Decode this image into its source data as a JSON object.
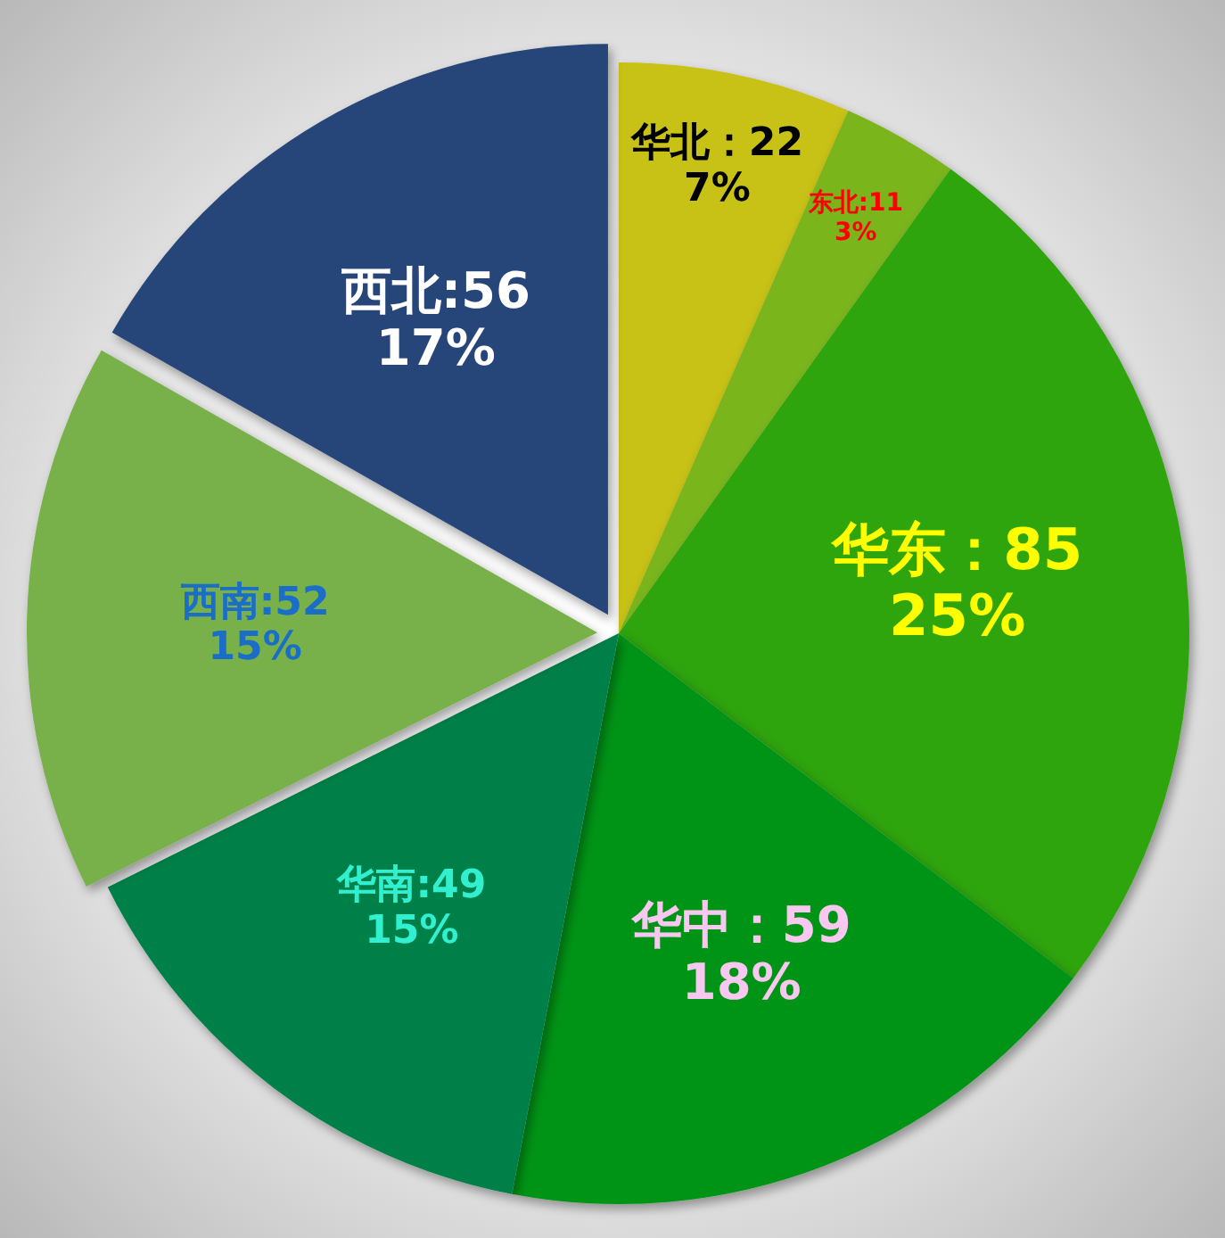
{
  "chart_data": {
    "type": "pie",
    "categories": [
      "华北",
      "东北",
      "华东",
      "华中",
      "华南",
      "西南",
      "西北"
    ],
    "values": [
      22,
      11,
      85,
      59,
      49,
      52,
      56
    ],
    "colors": [
      "#c8c118",
      "#7ab51a",
      "#2fa40a",
      "#069419",
      "#00804a",
      "#78b04a",
      "#264478"
    ],
    "value_labels": [
      "：22\n7%",
      ":11\n3%",
      "：85\n25%",
      "：59\n18%",
      ":49\n15%",
      ":52\n15%",
      ":56\n17%"
    ]
  }
}
